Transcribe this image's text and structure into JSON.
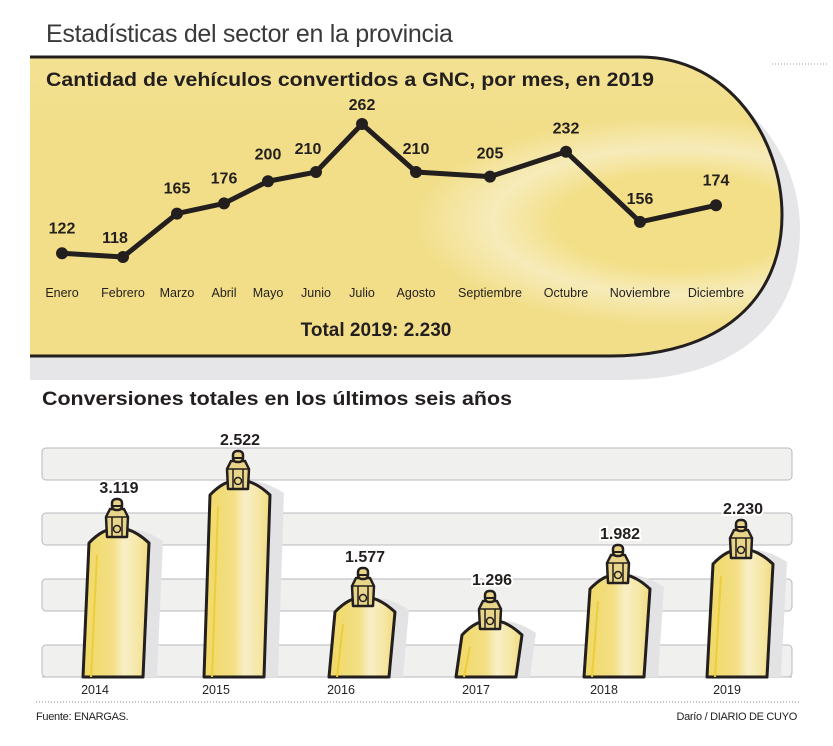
{
  "page": {
    "title": "Estadísticas del sector en la provincia",
    "source": "Fuente: ENARGAS.",
    "credit": "Darío / DIARIO DE CUYO"
  },
  "colors": {
    "panel_fill": "#f2df8a",
    "panel_highlight": "#f8efc4",
    "ink": "#231f1e",
    "cylinder_fill": "#f3df84",
    "cylinder_highlight": "#f8f0c8",
    "band_fill": "#f0f0ee",
    "band_stroke": "#b9b9bd",
    "shadow": "#e4e4e6"
  },
  "chart_data": [
    {
      "type": "line",
      "title": "Cantidad de vehículos convertidos a  GNC, por mes, en 2019",
      "categories": [
        "Enero",
        "Febrero",
        "Marzo",
        "Abril",
        "Mayo",
        "Junio",
        "Julio",
        "Agosto",
        "Septiembre",
        "Octubre",
        "Noviembre",
        "Diciembre"
      ],
      "values": [
        122,
        118,
        165,
        176,
        200,
        210,
        262,
        210,
        205,
        232,
        156,
        174
      ],
      "value_labels": [
        "122",
        "118",
        "165",
        "176",
        "200",
        "210",
        "262",
        "210",
        "205",
        "232",
        "156",
        "174"
      ],
      "footer_label": "Total  2019: 2.230",
      "xlabel": "",
      "ylabel": "",
      "grid": false
    },
    {
      "type": "bar",
      "title": "Conversiones totales en los últimos seis años",
      "categories": [
        "2014",
        "2015",
        "2016",
        "2017",
        "2018",
        "2019"
      ],
      "values": [
        3119,
        2522,
        1577,
        1296,
        1982,
        2230
      ],
      "value_labels": [
        "3.119",
        "2.522",
        "1.577",
        "1.296",
        "1.982",
        "2.230"
      ],
      "xlabel": "",
      "ylabel": "",
      "grid": true
    }
  ]
}
